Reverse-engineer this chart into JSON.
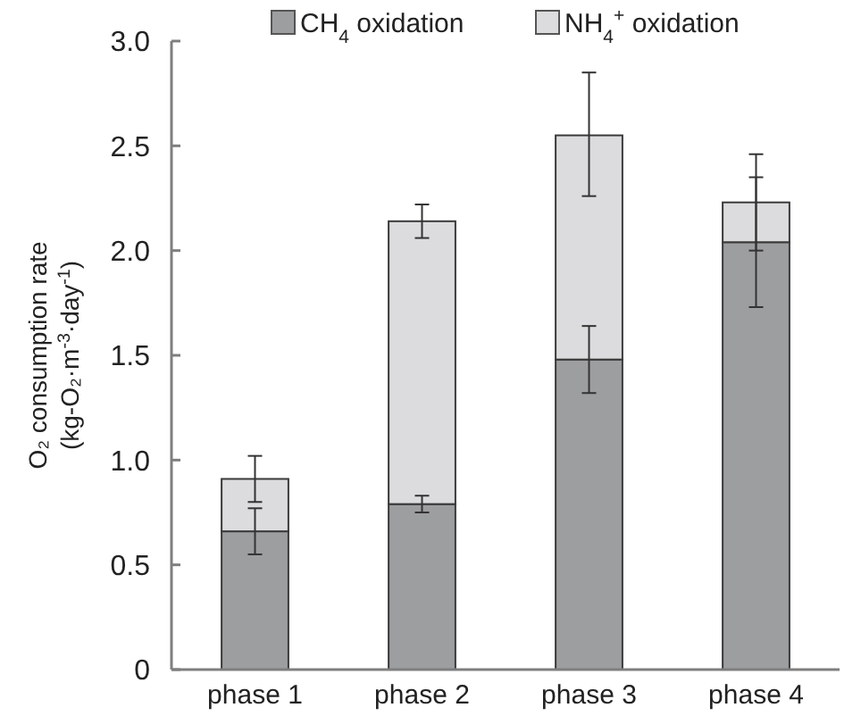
{
  "chart_data": {
    "type": "bar",
    "stacked": true,
    "ylabel": "O₂ consumption rate\n(kg-O₂·m$^{-3}$·day$^{-1}$)",
    "categories": [
      "phase 1",
      "phase 2",
      "phase 3",
      "phase 4"
    ],
    "series": [
      {
        "name": "CH$_{4}$ oxidation",
        "color": "#9d9ea0",
        "values": [
          0.66,
          0.79,
          1.48,
          2.04
        ],
        "errors": [
          [
            0.55,
            0.77
          ],
          [
            0.75,
            0.83
          ],
          [
            1.32,
            1.64
          ],
          [
            1.73,
            2.35
          ]
        ]
      },
      {
        "name": "NH$_{4}$$^{+}$ oxidation",
        "color": "#dcdcde",
        "values": [
          0.25,
          1.35,
          1.07,
          0.19
        ],
        "errors": [
          [
            0.8,
            1.02
          ],
          [
            2.06,
            2.22
          ],
          [
            2.26,
            2.85
          ],
          [
            2.0,
            2.46
          ]
        ]
      }
    ],
    "ylim": [
      0,
      3
    ],
    "yticks": [
      0,
      {
        "value": 0.5,
        "label": "0.5"
      },
      {
        "value": 1,
        "label": "1.0"
      },
      {
        "value": 1.5,
        "label": "1.5"
      },
      {
        "value": 2,
        "label": "2.0"
      },
      {
        "value": 2.5,
        "label": "2.5"
      },
      {
        "value": 3,
        "label": "3.0"
      }
    ],
    "legend": "top",
    "grid": false
  }
}
